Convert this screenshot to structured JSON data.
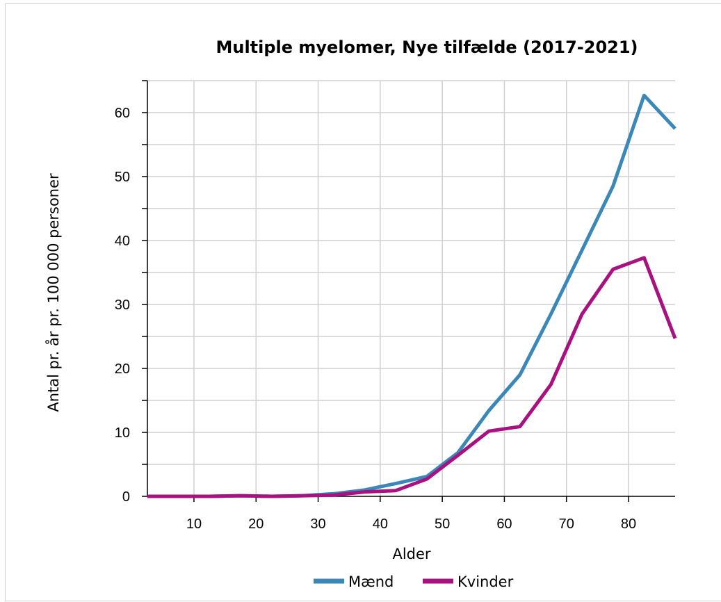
{
  "chart_data": {
    "type": "line",
    "title": "Multiple myelomer, Nye tilfælde (2017-2021)",
    "xlabel": "Alder",
    "ylabel": "Antal pr. år pr. 100 000 personer",
    "xlim": [
      2.5,
      87.5
    ],
    "ylim": [
      0,
      65
    ],
    "x_ticks": [
      10,
      20,
      30,
      40,
      50,
      60,
      70,
      80
    ],
    "y_ticks": [
      0,
      10,
      20,
      30,
      40,
      50,
      60
    ],
    "grid": true,
    "legend_position": "bottom",
    "x": [
      2.5,
      7.5,
      12.5,
      17.5,
      22.5,
      27.5,
      32.5,
      37.5,
      42.5,
      47.5,
      52.5,
      57.5,
      62.5,
      67.5,
      72.5,
      77.5,
      82.5,
      87.5
    ],
    "series": [
      {
        "name": "Mænd",
        "color": "#3a87b8",
        "values": [
          0.0,
          0.0,
          0.0,
          0.1,
          0.0,
          0.1,
          0.4,
          1.0,
          2.0,
          3.1,
          6.8,
          13.4,
          19.0,
          28.5,
          38.5,
          48.5,
          62.7,
          57.5
        ]
      },
      {
        "name": "Kvinder",
        "color": "#a8117f",
        "values": [
          0.0,
          0.0,
          0.0,
          0.1,
          0.0,
          0.1,
          0.2,
          0.7,
          0.9,
          2.7,
          6.4,
          10.2,
          10.9,
          17.5,
          28.5,
          35.5,
          37.3,
          24.7
        ]
      }
    ]
  }
}
